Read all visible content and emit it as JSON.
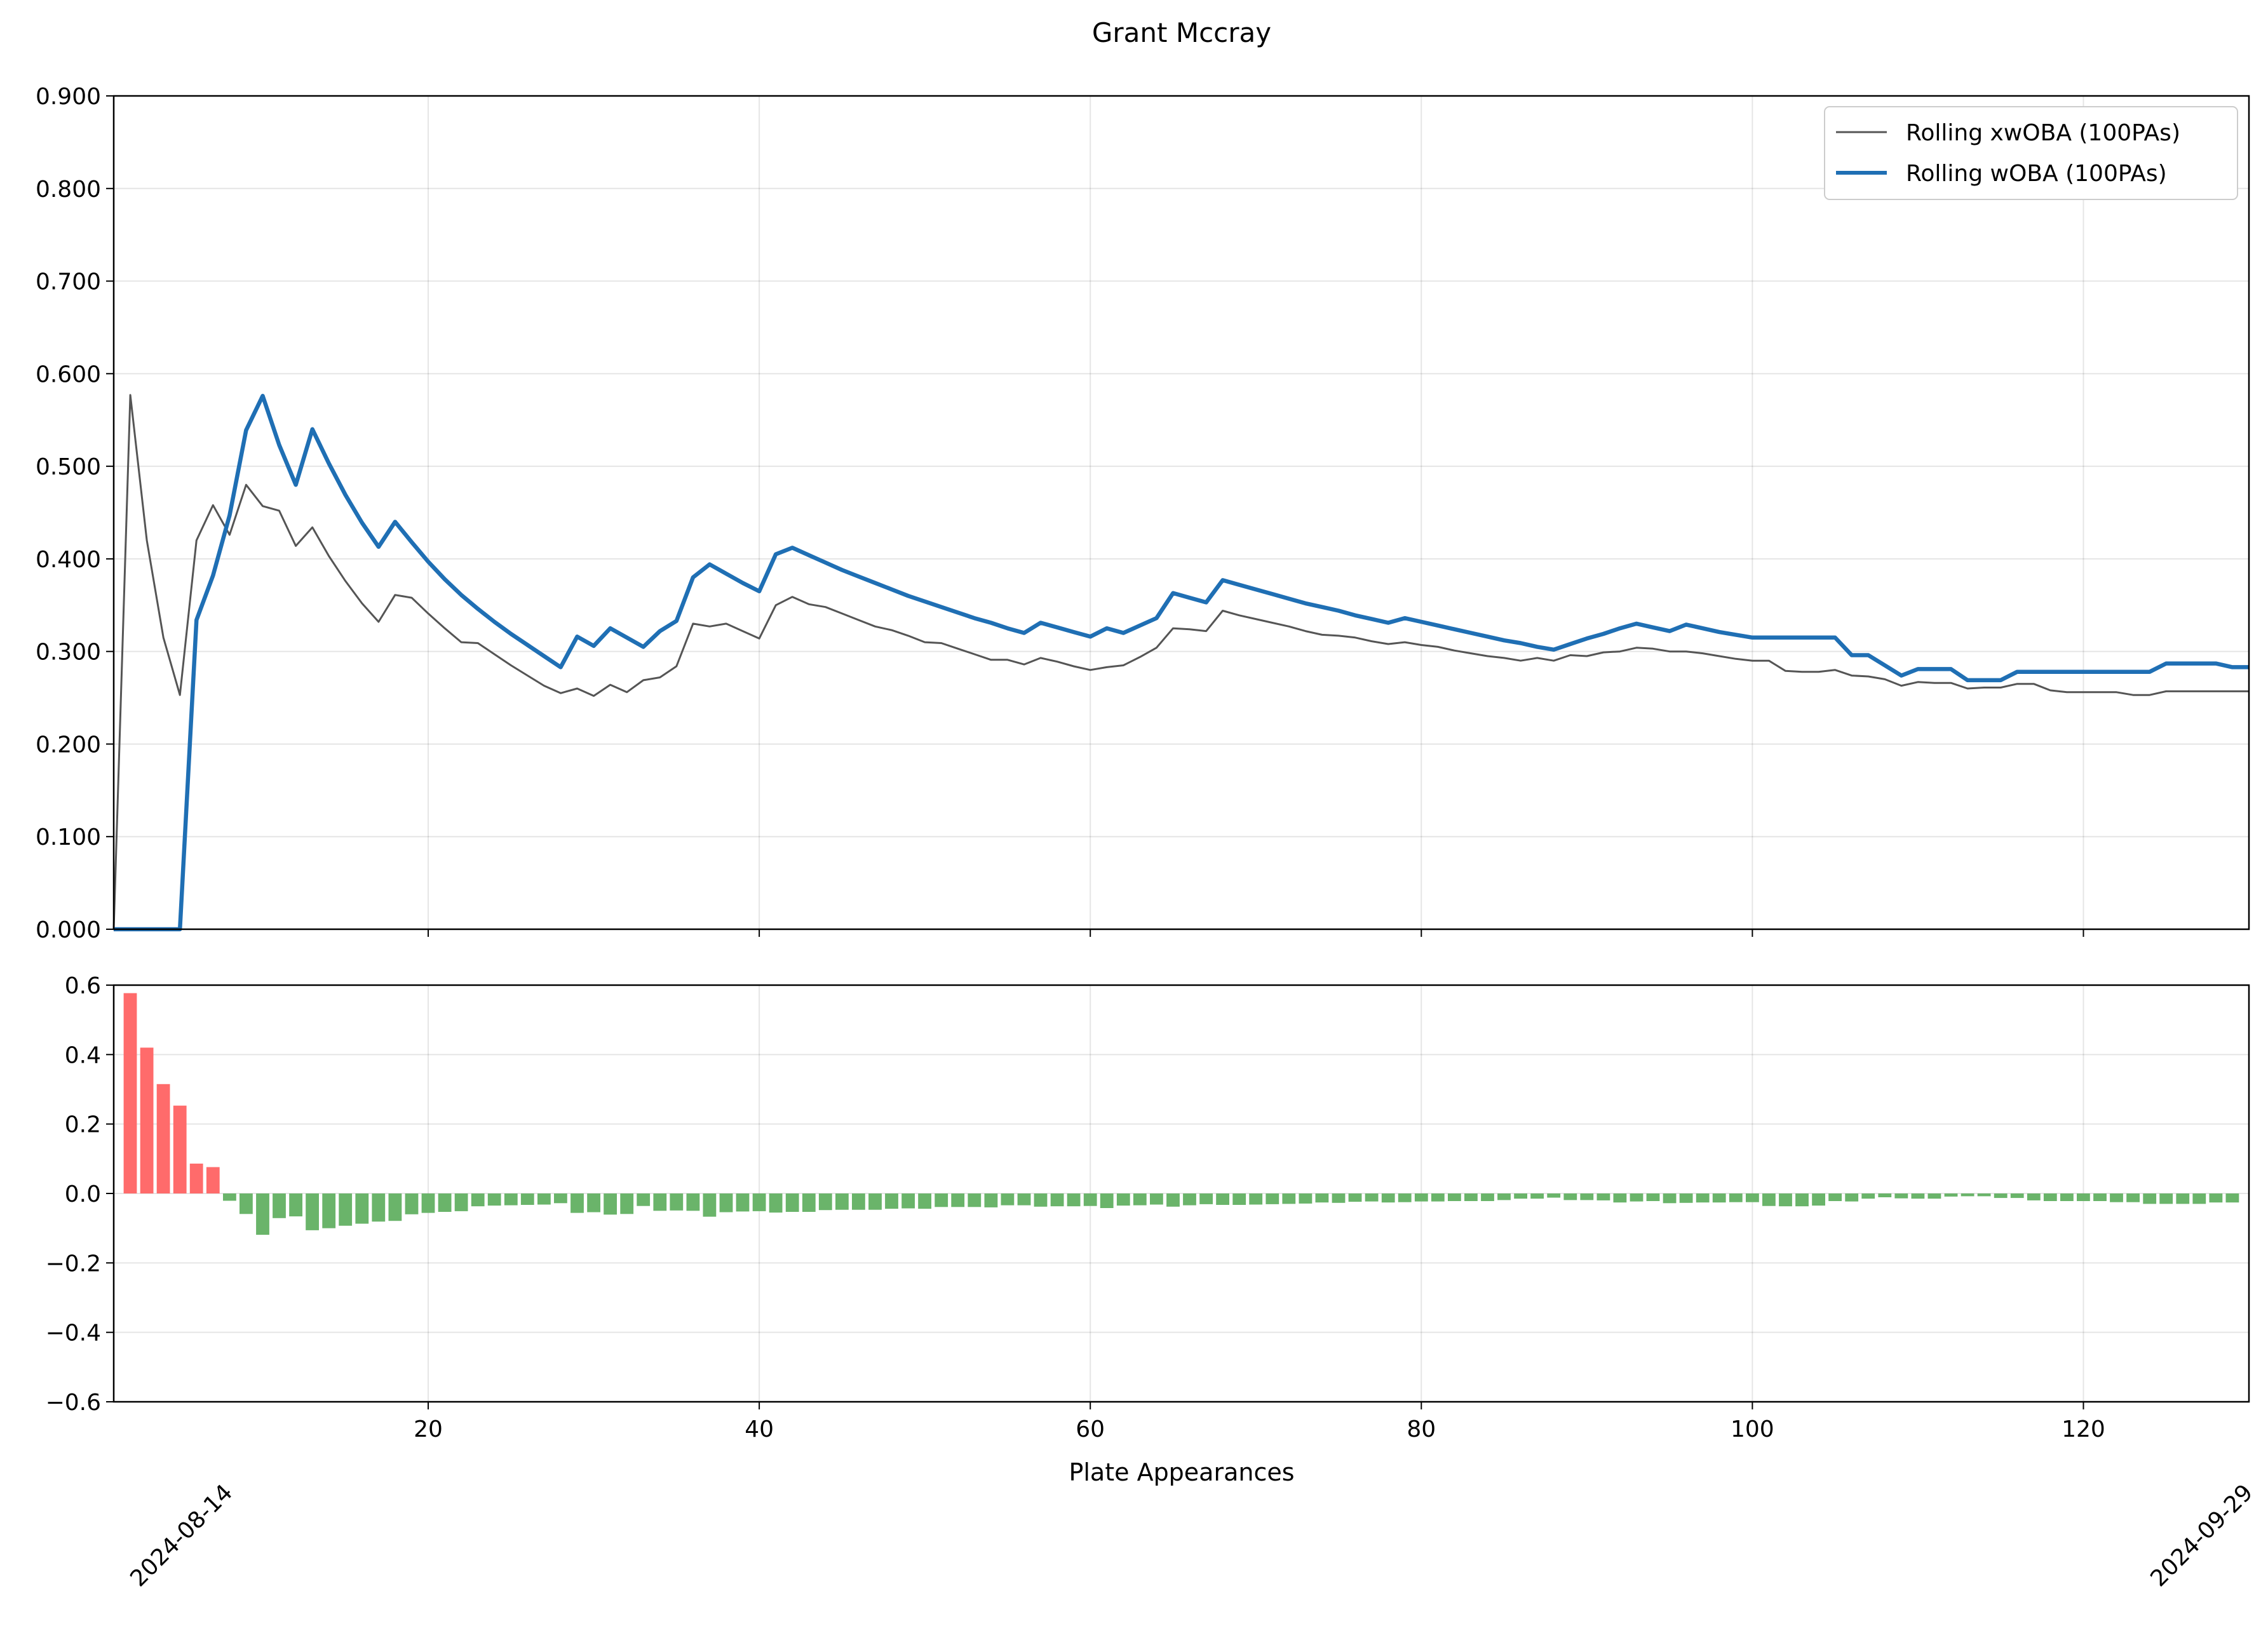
{
  "chart_data": [
    {
      "type": "line",
      "title": "Grant Mccray",
      "xlabel": "",
      "ylabel": "",
      "xlim": [
        1,
        130
      ],
      "ylim": [
        0,
        0.9
      ],
      "yticks": [
        0.0,
        0.1,
        0.2,
        0.3,
        0.4,
        0.5,
        0.6,
        0.7,
        0.8,
        0.9
      ],
      "ytick_labels": [
        "0.000",
        "0.100",
        "0.200",
        "0.300",
        "0.400",
        "0.500",
        "0.600",
        "0.700",
        "0.800",
        "0.900"
      ],
      "grid": true,
      "legend_position": "top-right",
      "series": [
        {
          "name": "Rolling xwOBA (100PAs)",
          "color": "#555555",
          "x_start": 1,
          "values": [
            0.0,
            0.577,
            0.42,
            0.315,
            0.253,
            0.42,
            0.458,
            0.426,
            0.48,
            0.457,
            0.452,
            0.414,
            0.434,
            0.403,
            0.376,
            0.352,
            0.332,
            0.361,
            0.358,
            0.341,
            0.325,
            0.31,
            0.309,
            0.297,
            0.285,
            0.274,
            0.263,
            0.255,
            0.26,
            0.252,
            0.264,
            0.256,
            0.269,
            0.272,
            0.284,
            0.33,
            0.327,
            0.33,
            0.322,
            0.314,
            0.35,
            0.359,
            0.351,
            0.348,
            0.341,
            0.334,
            0.327,
            0.323,
            0.317,
            0.31,
            0.309,
            0.303,
            0.297,
            0.291,
            0.291,
            0.286,
            0.293,
            0.289,
            0.284,
            0.28,
            0.283,
            0.285,
            0.294,
            0.304,
            0.325,
            0.324,
            0.322,
            0.344,
            0.339,
            0.335,
            0.331,
            0.327,
            0.322,
            0.318,
            0.317,
            0.315,
            0.311,
            0.308,
            0.31,
            0.307,
            0.305,
            0.301,
            0.298,
            0.295,
            0.293,
            0.29,
            0.293,
            0.29,
            0.296,
            0.295,
            0.299,
            0.3,
            0.304,
            0.303,
            0.3,
            0.3,
            0.298,
            0.295,
            0.292,
            0.29,
            0.29,
            0.279,
            0.278,
            0.278,
            0.28,
            0.274,
            0.273,
            0.27,
            0.263,
            0.267,
            0.266,
            0.266,
            0.26,
            0.261,
            0.261,
            0.265,
            0.265,
            0.258,
            0.256,
            0.256,
            0.256,
            0.256,
            0.253,
            0.253,
            0.257,
            0.257,
            0.257,
            0.257,
            0.257,
            0.257
          ]
        },
        {
          "name": "Rolling wOBA (100PAs)",
          "color": "#1f6fb4",
          "x_start": 1,
          "values": [
            0.0,
            0.0,
            0.0,
            0.0,
            0.0,
            0.334,
            0.382,
            0.447,
            0.539,
            0.576,
            0.523,
            0.48,
            0.54,
            0.503,
            0.469,
            0.439,
            0.413,
            0.44,
            0.418,
            0.397,
            0.378,
            0.361,
            0.346,
            0.332,
            0.319,
            0.307,
            0.295,
            0.283,
            0.316,
            0.306,
            0.325,
            0.315,
            0.305,
            0.322,
            0.333,
            0.38,
            0.394,
            0.384,
            0.374,
            0.365,
            0.405,
            0.412,
            0.404,
            0.396,
            0.388,
            0.381,
            0.374,
            0.367,
            0.36,
            0.354,
            0.348,
            0.342,
            0.336,
            0.331,
            0.325,
            0.32,
            0.331,
            0.326,
            0.321,
            0.316,
            0.325,
            0.32,
            0.328,
            0.336,
            0.363,
            0.358,
            0.353,
            0.377,
            0.372,
            0.367,
            0.362,
            0.357,
            0.352,
            0.348,
            0.344,
            0.339,
            0.335,
            0.331,
            0.336,
            0.332,
            0.328,
            0.324,
            0.32,
            0.316,
            0.312,
            0.309,
            0.305,
            0.302,
            0.308,
            0.314,
            0.319,
            0.325,
            0.33,
            0.326,
            0.322,
            0.329,
            0.325,
            0.321,
            0.318,
            0.315,
            0.315,
            0.315,
            0.315,
            0.315,
            0.315,
            0.296,
            0.296,
            0.285,
            0.274,
            0.281,
            0.281,
            0.281,
            0.269,
            0.269,
            0.269,
            0.278,
            0.278,
            0.278,
            0.278,
            0.278,
            0.278,
            0.278,
            0.278,
            0.278,
            0.287,
            0.287,
            0.287,
            0.287,
            0.283,
            0.283
          ]
        }
      ]
    },
    {
      "type": "bar",
      "xlabel": "Plate Appearances",
      "ylabel": "",
      "xlim": [
        1,
        130
      ],
      "ylim": [
        -0.6,
        0.6
      ],
      "yticks": [
        -0.6,
        -0.4,
        -0.2,
        0.0,
        0.2,
        0.4,
        0.6
      ],
      "ytick_labels": [
        "−0.6",
        "−0.4",
        "−0.2",
        "0.0",
        "0.2",
        "0.4",
        "0.6"
      ],
      "xticks": [
        20,
        40,
        60,
        80,
        100,
        120
      ],
      "xtick_labels": [
        "20",
        "40",
        "60",
        "80",
        "100",
        "120"
      ],
      "grid": true,
      "positive_color": "#ff6b6b",
      "negative_color": "#6ab46a",
      "x_start": 2,
      "values": [
        0.577,
        0.42,
        0.315,
        0.253,
        0.086,
        0.076,
        -0.021,
        -0.059,
        -0.119,
        -0.071,
        -0.066,
        -0.106,
        -0.1,
        -0.093,
        -0.087,
        -0.081,
        -0.079,
        -0.06,
        -0.056,
        -0.053,
        -0.051,
        -0.037,
        -0.035,
        -0.034,
        -0.033,
        -0.032,
        -0.028,
        -0.056,
        -0.054,
        -0.061,
        -0.059,
        -0.036,
        -0.05,
        -0.049,
        -0.05,
        -0.067,
        -0.054,
        -0.052,
        -0.051,
        -0.055,
        -0.053,
        -0.053,
        -0.048,
        -0.047,
        -0.047,
        -0.047,
        -0.044,
        -0.043,
        -0.044,
        -0.039,
        -0.039,
        -0.039,
        -0.04,
        -0.034,
        -0.034,
        -0.038,
        -0.037,
        -0.037,
        -0.036,
        -0.042,
        -0.035,
        -0.034,
        -0.032,
        -0.038,
        -0.034,
        -0.031,
        -0.033,
        -0.033,
        -0.032,
        -0.031,
        -0.03,
        -0.029,
        -0.026,
        -0.027,
        -0.024,
        -0.023,
        -0.026,
        -0.025,
        -0.023,
        -0.023,
        -0.022,
        -0.022,
        -0.022,
        -0.019,
        -0.015,
        -0.015,
        -0.012,
        -0.019,
        -0.019,
        -0.02,
        -0.026,
        -0.023,
        -0.022,
        -0.028,
        -0.027,
        -0.026,
        -0.026,
        -0.025,
        -0.025,
        -0.036,
        -0.037,
        -0.037,
        -0.035,
        -0.022,
        -0.023,
        -0.015,
        -0.011,
        -0.014,
        -0.015,
        -0.015,
        -0.009,
        -0.008,
        -0.008,
        -0.013,
        -0.013,
        -0.02,
        -0.022,
        -0.022,
        -0.022,
        -0.022,
        -0.025,
        -0.025,
        -0.03,
        -0.03,
        -0.03,
        -0.03,
        -0.026,
        -0.026
      ]
    }
  ],
  "dates": {
    "start": "2024-08-14",
    "end": "2024-09-29"
  }
}
